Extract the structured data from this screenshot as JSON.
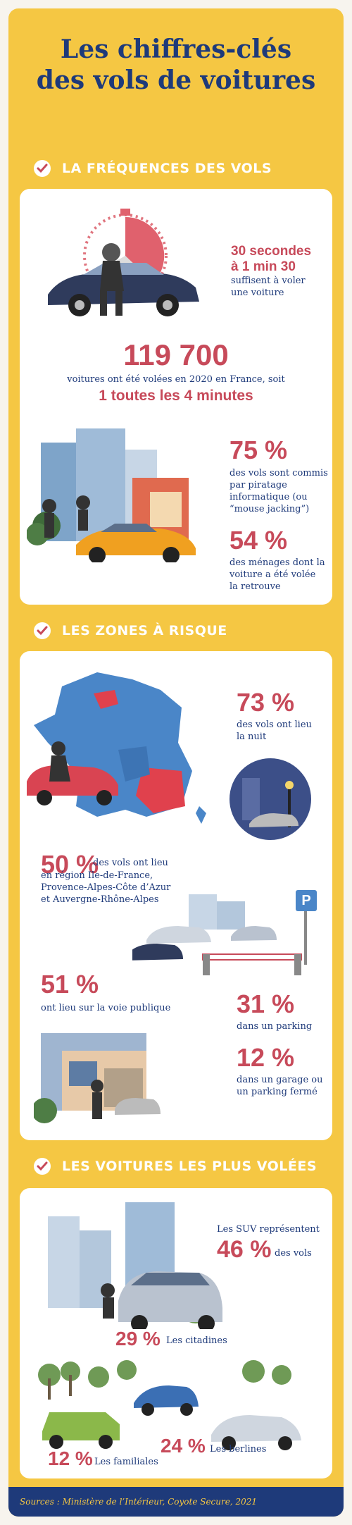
{
  "title": {
    "line1": "Les chiffres-clés",
    "line2": "des vols de voitures"
  },
  "sections": [
    {
      "label": "LA FRÉQUENCES DES VOLS"
    },
    {
      "label": "LES ZONES À RISQUE"
    },
    {
      "label": "LES VOITURES LES PLUS VOLÉES"
    }
  ],
  "frequences": {
    "time_range": "30 secondes\nà 1 min 30",
    "time_text": "suffisent à voler\nune voiture",
    "count": "119 700",
    "count_text": "voitures ont été volées en 2020 en France, soit",
    "rate": "1 toutes les 4 minutes",
    "hacking_pct": "75 %",
    "hacking_text": "des vols sont commis\npar piratage\ninformatique (ou\n“mouse jacking”)",
    "recovered_pct": "54 %",
    "recovered_text": "des ménages dont la\nvoiture a été volée\nla retrouve"
  },
  "zones": {
    "night_pct": "73 %",
    "night_text": "des vols ont lieu\nla nuit",
    "regions_pct": "50 %",
    "regions_text_1": "des vols ont lieu",
    "regions_text_2": "en région Ile-de-France,\nProvence-Alpes-Côte d’Azur\net Auvergne-Rhône-Alpes",
    "parking_sign": "P",
    "street_pct": "51 %",
    "street_text": "ont lieu sur la voie publique",
    "parking_pct": "31 %",
    "parking_text": "dans un parking",
    "garage_pct": "12 %",
    "garage_text": "dans un garage ou\nun parking fermé"
  },
  "voitures": {
    "suv_intro": "Les SUV représentent",
    "suv_pct": "46 %",
    "suv_suffix": "des vols",
    "citadines_pct": "29 %",
    "citadines_label": "Les citadines",
    "familiales_pct": "12 %",
    "familiales_label": "Les familiales",
    "berlines_pct": "24 %",
    "berlines_label": "Les berlines"
  },
  "footer": "Sources :  Ministère de l’Intérieur, Coyote Secure, 2021",
  "colors": {
    "yellow": "#f5c743",
    "navy": "#1e3a7a",
    "red": "#c74a5a",
    "blue_map": "#4a86c8"
  }
}
